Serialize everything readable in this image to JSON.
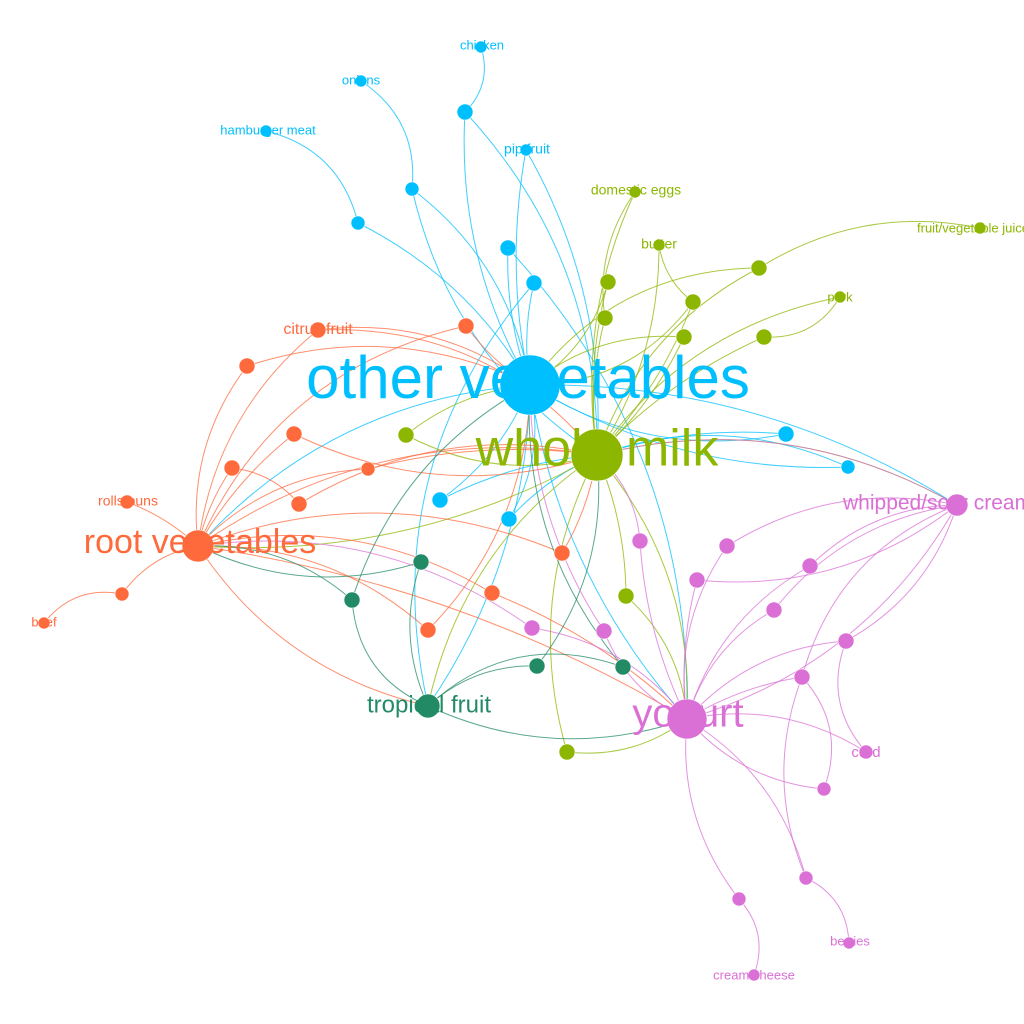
{
  "colors": {
    "blue": "#00bfff",
    "green": "#8db600",
    "orange": "#ff6a3d",
    "teal": "#228b66",
    "pink": "#da70d6"
  },
  "labels": {
    "other_vegetables": "other vegetables",
    "whole_milk": "whole milk",
    "root_vegetables": "root vegetables",
    "yogurt": "yogurt",
    "tropical_fruit": "tropical fruit",
    "whipped_sour_cream": "whipped/sour cream",
    "citrus_fruit": "citrus fruit",
    "rolls_buns": "rolls/buns",
    "beef": "beef",
    "chicken": "chicken",
    "onions": "onions",
    "hamburger_meat": "hamburger meat",
    "pip_fruit": "pip fruit",
    "domestic_eggs": "domestic eggs",
    "butter": "butter",
    "pork": "pork",
    "fruit_vegetable_juice": "fruit/vegetable juice",
    "curd": "curd",
    "berries": "berries",
    "cream_cheese": "cream cheese"
  }
}
